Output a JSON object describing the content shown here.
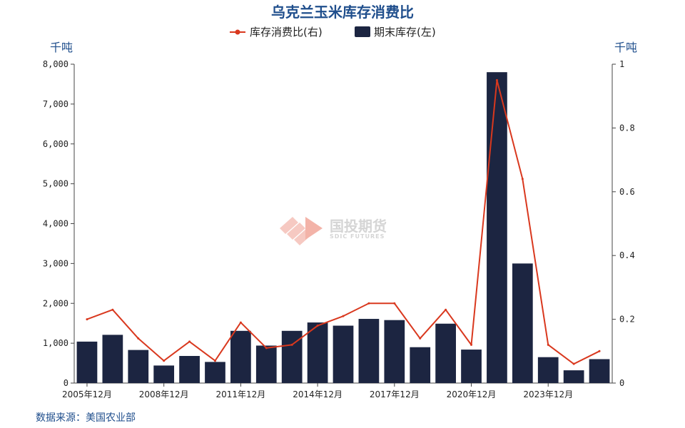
{
  "chart_data": {
    "type": "bar+line",
    "title": "乌克兰玉米库存消费比",
    "source": "数据来源：美国农业部",
    "y_left_label": "千吨",
    "y_right_label": "千吨",
    "y_left_lim": [
      0,
      8000
    ],
    "y_right_lim": [
      0,
      1
    ],
    "y_left_ticks": [
      "0",
      "1,000",
      "2,000",
      "3,000",
      "4,000",
      "5,000",
      "6,000",
      "7,000",
      "8,000"
    ],
    "y_right_ticks": [
      "0",
      "0.2",
      "0.4",
      "0.6",
      "0.8",
      "1"
    ],
    "x_tick_labels": [
      "2005年12月",
      "2008年12月",
      "2011年12月",
      "2014年12月",
      "2017年12月",
      "2020年12月",
      "2023年12月"
    ],
    "categories": [
      "2005",
      "2006",
      "2007",
      "2008",
      "2009",
      "2010",
      "2011",
      "2012",
      "2013",
      "2014",
      "2015",
      "2016",
      "2017",
      "2018",
      "2019",
      "2020",
      "2021",
      "2022",
      "2023",
      "2024",
      "2025"
    ],
    "series": [
      {
        "name": "期末库存(左)",
        "type": "bar",
        "axis": "left",
        "color": "#1c2541",
        "values": [
          1040,
          1210,
          830,
          440,
          680,
          530,
          1310,
          940,
          1310,
          1520,
          1440,
          1610,
          1580,
          900,
          1490,
          840,
          7800,
          3000,
          650,
          320,
          600
        ]
      },
      {
        "name": "库存消费比(右)",
        "type": "line",
        "axis": "right",
        "color": "#d9381e",
        "values": [
          0.2,
          0.23,
          0.14,
          0.07,
          0.13,
          0.07,
          0.19,
          0.11,
          0.12,
          0.18,
          0.21,
          0.25,
          0.25,
          0.14,
          0.23,
          0.12,
          0.95,
          0.64,
          0.12,
          0.06,
          0.1
        ]
      }
    ],
    "legend_position": "top-center",
    "watermark": "国投期货",
    "watermark_sub": "SDIC FUTURES"
  }
}
